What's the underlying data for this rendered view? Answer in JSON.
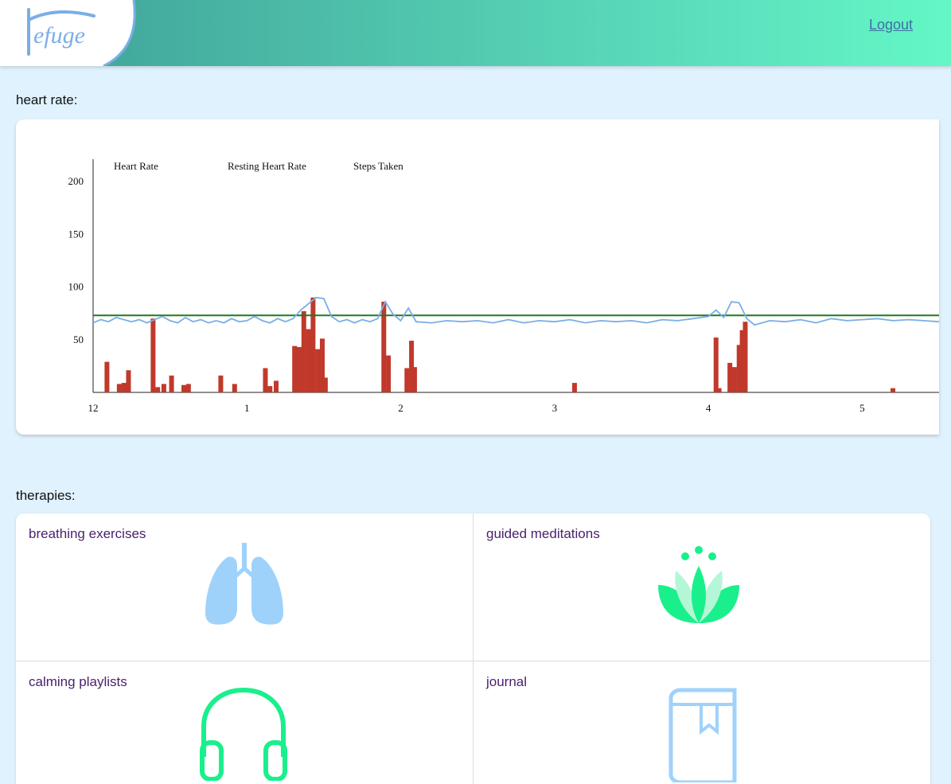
{
  "header": {
    "logo_text": "efuge",
    "logout_label": "Logout"
  },
  "heart_section": {
    "label": "heart rate:"
  },
  "chart_data": {
    "type": "line",
    "legend": [
      "Heart Rate",
      "Resting Heart Rate",
      "Steps Taken"
    ],
    "x_ticks": [
      "12",
      "1",
      "2",
      "3",
      "4",
      "5"
    ],
    "y_ticks": [
      50,
      100,
      150,
      200
    ],
    "ylim": [
      0,
      200
    ],
    "xlim": [
      0,
      5.5
    ],
    "colors": {
      "heart_rate": "#7aaee6",
      "resting": "#1f7a1f",
      "steps": "#c0392b"
    },
    "resting_heart_rate": 73,
    "heart_rate": [
      [
        0.0,
        66
      ],
      [
        0.05,
        69
      ],
      [
        0.1,
        67
      ],
      [
        0.15,
        71
      ],
      [
        0.2,
        69
      ],
      [
        0.25,
        67
      ],
      [
        0.3,
        69
      ],
      [
        0.35,
        66
      ],
      [
        0.4,
        69
      ],
      [
        0.45,
        72
      ],
      [
        0.5,
        68
      ],
      [
        0.55,
        66
      ],
      [
        0.6,
        71
      ],
      [
        0.65,
        67
      ],
      [
        0.7,
        69
      ],
      [
        0.75,
        66
      ],
      [
        0.8,
        68
      ],
      [
        0.85,
        66
      ],
      [
        0.9,
        70
      ],
      [
        0.95,
        67
      ],
      [
        1.0,
        68
      ],
      [
        1.05,
        72
      ],
      [
        1.1,
        68
      ],
      [
        1.15,
        66
      ],
      [
        1.2,
        70
      ],
      [
        1.25,
        67
      ],
      [
        1.3,
        70
      ],
      [
        1.35,
        78
      ],
      [
        1.4,
        84
      ],
      [
        1.45,
        90
      ],
      [
        1.5,
        89
      ],
      [
        1.55,
        72
      ],
      [
        1.6,
        67
      ],
      [
        1.65,
        69
      ],
      [
        1.7,
        66
      ],
      [
        1.75,
        69
      ],
      [
        1.8,
        67
      ],
      [
        1.85,
        70
      ],
      [
        1.9,
        86
      ],
      [
        1.95,
        74
      ],
      [
        2.0,
        68
      ],
      [
        2.05,
        80
      ],
      [
        2.1,
        67
      ],
      [
        2.2,
        66
      ],
      [
        2.3,
        68
      ],
      [
        2.4,
        67
      ],
      [
        2.5,
        68
      ],
      [
        2.6,
        66
      ],
      [
        2.7,
        69
      ],
      [
        2.8,
        66
      ],
      [
        2.9,
        68
      ],
      [
        3.0,
        67
      ],
      [
        3.1,
        69
      ],
      [
        3.2,
        66
      ],
      [
        3.3,
        68
      ],
      [
        3.4,
        67
      ],
      [
        3.5,
        68
      ],
      [
        3.6,
        66
      ],
      [
        3.7,
        69
      ],
      [
        3.8,
        68
      ],
      [
        3.9,
        70
      ],
      [
        4.0,
        72
      ],
      [
        4.05,
        78
      ],
      [
        4.1,
        71
      ],
      [
        4.15,
        86
      ],
      [
        4.2,
        85
      ],
      [
        4.25,
        70
      ],
      [
        4.3,
        64
      ],
      [
        4.4,
        68
      ],
      [
        4.5,
        67
      ],
      [
        4.6,
        69
      ],
      [
        4.7,
        66
      ],
      [
        4.8,
        70
      ],
      [
        4.9,
        68
      ],
      [
        5.0,
        69
      ],
      [
        5.1,
        70
      ],
      [
        5.2,
        68
      ],
      [
        5.3,
        69
      ],
      [
        5.4,
        68
      ],
      [
        5.5,
        67
      ]
    ],
    "steps": [
      [
        0.09,
        29
      ],
      [
        0.17,
        8
      ],
      [
        0.2,
        9
      ],
      [
        0.23,
        21
      ],
      [
        0.39,
        70
      ],
      [
        0.42,
        5
      ],
      [
        0.46,
        8
      ],
      [
        0.51,
        16
      ],
      [
        0.59,
        7
      ],
      [
        0.62,
        8
      ],
      [
        0.83,
        16
      ],
      [
        0.92,
        8
      ],
      [
        1.12,
        23
      ],
      [
        1.15,
        6
      ],
      [
        1.19,
        11
      ],
      [
        1.31,
        44
      ],
      [
        1.34,
        43
      ],
      [
        1.37,
        77
      ],
      [
        1.4,
        60
      ],
      [
        1.43,
        90
      ],
      [
        1.46,
        41
      ],
      [
        1.49,
        51
      ],
      [
        1.51,
        14
      ],
      [
        1.89,
        86
      ],
      [
        1.92,
        35
      ],
      [
        2.04,
        23
      ],
      [
        2.07,
        49
      ],
      [
        2.09,
        24
      ],
      [
        3.13,
        9
      ],
      [
        4.05,
        52
      ],
      [
        4.07,
        4
      ],
      [
        4.14,
        28
      ],
      [
        4.17,
        24
      ],
      [
        4.2,
        45
      ],
      [
        4.22,
        59
      ],
      [
        4.24,
        67
      ],
      [
        5.2,
        4
      ]
    ]
  },
  "therapies_section": {
    "label": "therapies:"
  },
  "therapies": [
    {
      "title": "breathing exercises",
      "icon": "lungs-icon"
    },
    {
      "title": "guided meditations",
      "icon": "lotus-icon"
    },
    {
      "title": "calming playlists",
      "icon": "headphones-icon"
    },
    {
      "title": "journal",
      "icon": "book-icon"
    }
  ]
}
